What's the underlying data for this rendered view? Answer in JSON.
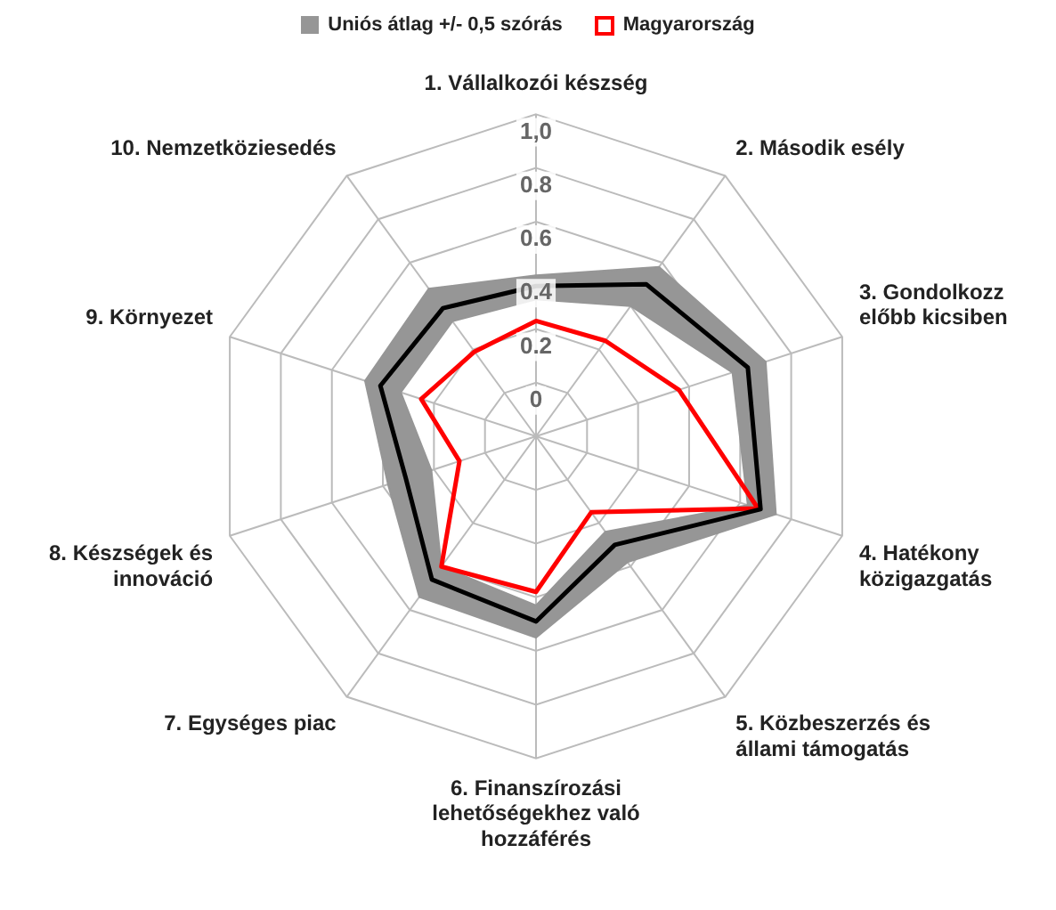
{
  "chart_data": {
    "type": "radar",
    "categories": [
      "1. Vállalkozói készség",
      "2. Második esély",
      "3. Gondolkozz előbb kicsiben",
      "4. Hatékony közigazgatás",
      "5. Közbeszerzés és állami támogatás",
      "6. Finanszírozási lehetőségekhez való hozzáférés",
      "7. Egységes piac",
      "8. Készségek és innováció",
      "9. Környezet",
      "10. Nemzetköziesedés"
    ],
    "series": [
      {
        "name": "Uniós átlag +/- 0,5 szórás",
        "type": "area",
        "color": "#969696",
        "values": [
          0.4,
          0.58,
          0.7,
          0.74,
          0.38,
          0.55,
          0.54,
          0.38,
          0.47,
          0.48
        ]
      },
      {
        "type": "area",
        "color": "#969696",
        "values": [
          0.31,
          0.4,
          0.57,
          0.63,
          0.24,
          0.43,
          0.4,
          0.21,
          0.33,
          0.33
        ]
      },
      {
        "color": "#000000",
        "values": [
          0.36,
          0.5,
          0.63,
          0.68,
          0.3,
          0.49,
          0.46,
          0.31,
          0.41,
          0.39
        ]
      },
      {
        "name": "Magyarország",
        "color": "#ff0000",
        "values": [
          0.23,
          0.24,
          0.36,
          0.67,
          0.15,
          0.38,
          0.4,
          0.1,
          0.25,
          0.19
        ]
      }
    ],
    "ylim": [
      -0.2,
      1.0
    ],
    "yticks": [
      0,
      0.2,
      0.4,
      0.6,
      0.8,
      {
        "value": 1.0,
        "label": "1,0"
      }
    ],
    "grid": true,
    "legend": "top"
  }
}
